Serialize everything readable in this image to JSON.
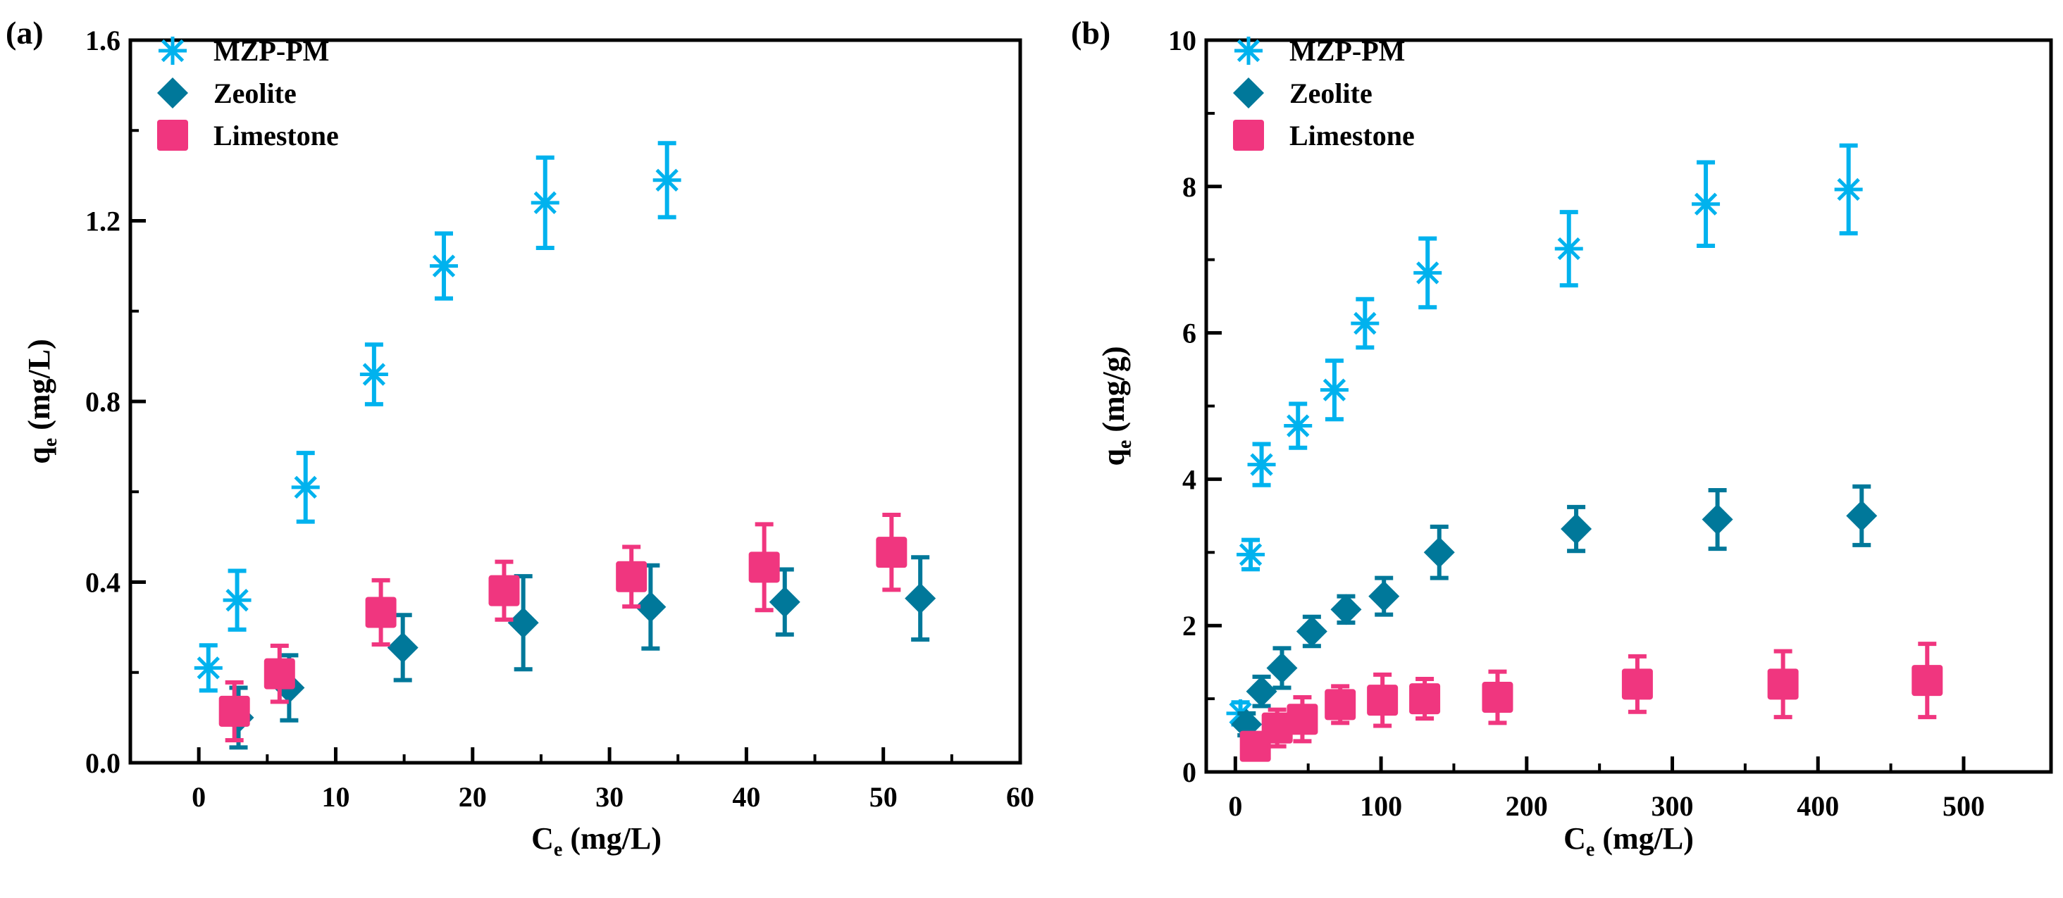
{
  "colors": {
    "mzp": "#00b2ee",
    "zeolite": "#00789a",
    "limestone": "#f0367f",
    "axis": "#000000"
  },
  "chart_data": [
    {
      "type": "scatter",
      "panel_label": "(a)",
      "xlabel": "C",
      "xlabel_sub": "e",
      "xlabel_unit": " (mg/L)",
      "ylabel": "q",
      "ylabel_sub": "e",
      "ylabel_unit": " (mg/L)",
      "xlim": [
        -5,
        60
      ],
      "ylim": [
        0,
        1.6
      ],
      "xticks": [
        "0",
        "10",
        "20",
        "30",
        "40",
        "50",
        "60"
      ],
      "xtick_values": [
        0,
        10,
        20,
        30,
        40,
        50,
        60
      ],
      "yticks": [
        "0.0",
        "0.4",
        "0.8",
        "1.2",
        "1.6"
      ],
      "ytick_values": [
        0,
        0.4,
        0.8,
        1.2,
        1.6
      ],
      "legend_position": "top-left",
      "series": [
        {
          "name": "MZP-PM",
          "marker": "asterisk",
          "x": [
            0.7,
            2.8,
            7.8,
            12.8,
            17.9,
            25.3,
            34.2
          ],
          "y": [
            0.21,
            0.36,
            0.61,
            0.86,
            1.1,
            1.24,
            1.29
          ],
          "err": [
            0.05,
            0.065,
            0.076,
            0.066,
            0.072,
            0.1,
            0.082
          ]
        },
        {
          "name": "Zeolite",
          "marker": "diamond",
          "x": [
            2.9,
            6.6,
            14.9,
            23.7,
            33.0,
            42.8,
            52.7
          ],
          "y": [
            0.1,
            0.166,
            0.255,
            0.31,
            0.345,
            0.356,
            0.364
          ],
          "err": [
            0.066,
            0.072,
            0.072,
            0.103,
            0.092,
            0.072,
            0.091
          ]
        },
        {
          "name": "Limestone",
          "marker": "square",
          "x": [
            2.6,
            5.9,
            13.3,
            22.3,
            31.6,
            41.3,
            50.6
          ],
          "y": [
            0.114,
            0.197,
            0.333,
            0.381,
            0.412,
            0.433,
            0.466
          ],
          "err": [
            0.064,
            0.062,
            0.071,
            0.064,
            0.066,
            0.095,
            0.083
          ]
        }
      ]
    },
    {
      "type": "scatter",
      "panel_label": "(b)",
      "xlabel": "C",
      "xlabel_sub": "e",
      "xlabel_unit": " (mg/L)",
      "ylabel": "q",
      "ylabel_sub": "e",
      "ylabel_unit": " (mg/g)",
      "xlim": [
        -20,
        560
      ],
      "ylim": [
        0,
        10
      ],
      "xticks": [
        "0",
        "100",
        "200",
        "300",
        "400",
        "500"
      ],
      "xtick_values": [
        0,
        100,
        200,
        300,
        400,
        500
      ],
      "yticks": [
        "0",
        "2",
        "4",
        "6",
        "8",
        "10"
      ],
      "ytick_values": [
        0,
        2,
        4,
        6,
        8,
        10
      ],
      "legend_position": "top-left",
      "series": [
        {
          "name": "MZP-PM",
          "marker": "asterisk",
          "x": [
            3.5,
            10.5,
            18,
            43,
            68,
            89,
            132,
            229,
            323,
            421
          ],
          "y": [
            0.8,
            2.97,
            4.2,
            4.73,
            5.22,
            6.13,
            6.82,
            7.15,
            7.76,
            7.96
          ],
          "err": [
            0.15,
            0.2,
            0.28,
            0.3,
            0.4,
            0.33,
            0.47,
            0.5,
            0.57,
            0.6
          ]
        },
        {
          "name": "Zeolite",
          "marker": "diamond",
          "x": [
            7.7,
            18,
            32,
            52.5,
            76,
            102,
            140,
            234,
            331,
            430
          ],
          "y": [
            0.65,
            1.1,
            1.42,
            1.92,
            2.22,
            2.4,
            3.0,
            3.32,
            3.45,
            3.5
          ],
          "err": [
            0.15,
            0.2,
            0.27,
            0.2,
            0.18,
            0.25,
            0.35,
            0.3,
            0.4,
            0.4
          ]
        },
        {
          "name": "Limestone",
          "marker": "square",
          "x": [
            13.7,
            28.7,
            46,
            72,
            101,
            130,
            180,
            276,
            376,
            475
          ],
          "y": [
            0.35,
            0.6,
            0.72,
            0.92,
            0.98,
            1.0,
            1.02,
            1.2,
            1.2,
            1.25
          ],
          "err": [
            0,
            0.25,
            0.3,
            0.25,
            0.35,
            0.27,
            0.35,
            0.38,
            0.45,
            0.5
          ]
        }
      ]
    }
  ]
}
